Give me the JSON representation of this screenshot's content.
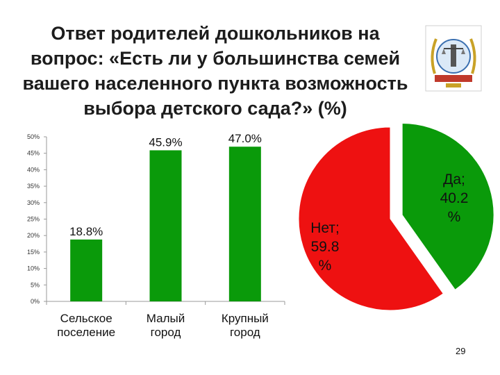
{
  "title": "Ответ родителей дошкольников на вопрос: «Есть ли у большинства семей вашего населенного пункта возможность выбора детского сада?» (%)",
  "page_number": "29",
  "colors": {
    "green": "#0a9a0a",
    "red": "#ee1111",
    "axis": "#999999"
  },
  "chart_data": [
    {
      "type": "bar",
      "categories": [
        [
          "Сельское",
          "поселение"
        ],
        [
          "Малый",
          "город"
        ],
        [
          "Крупный",
          "город"
        ]
      ],
      "values": [
        18.8,
        45.9,
        47.0
      ],
      "data_labels": [
        "18.8%",
        "45.9%",
        "47.0%"
      ],
      "yticks": [
        "0%",
        "5%",
        "10%",
        "15%",
        "20%",
        "25%",
        "30%",
        "35%",
        "40%",
        "45%",
        "50%"
      ],
      "ylim": [
        0,
        50
      ],
      "grid": false,
      "xlabel": "",
      "ylabel": ""
    },
    {
      "type": "pie",
      "slices": [
        {
          "label": [
            "Да;",
            "40.2",
            "%"
          ],
          "value": 40.2,
          "color": "#0a9a0a",
          "exploded": true
        },
        {
          "label": [
            "Нет;",
            "59.8",
            "%"
          ],
          "value": 59.8,
          "color": "#ee1111",
          "exploded": false
        }
      ]
    }
  ]
}
